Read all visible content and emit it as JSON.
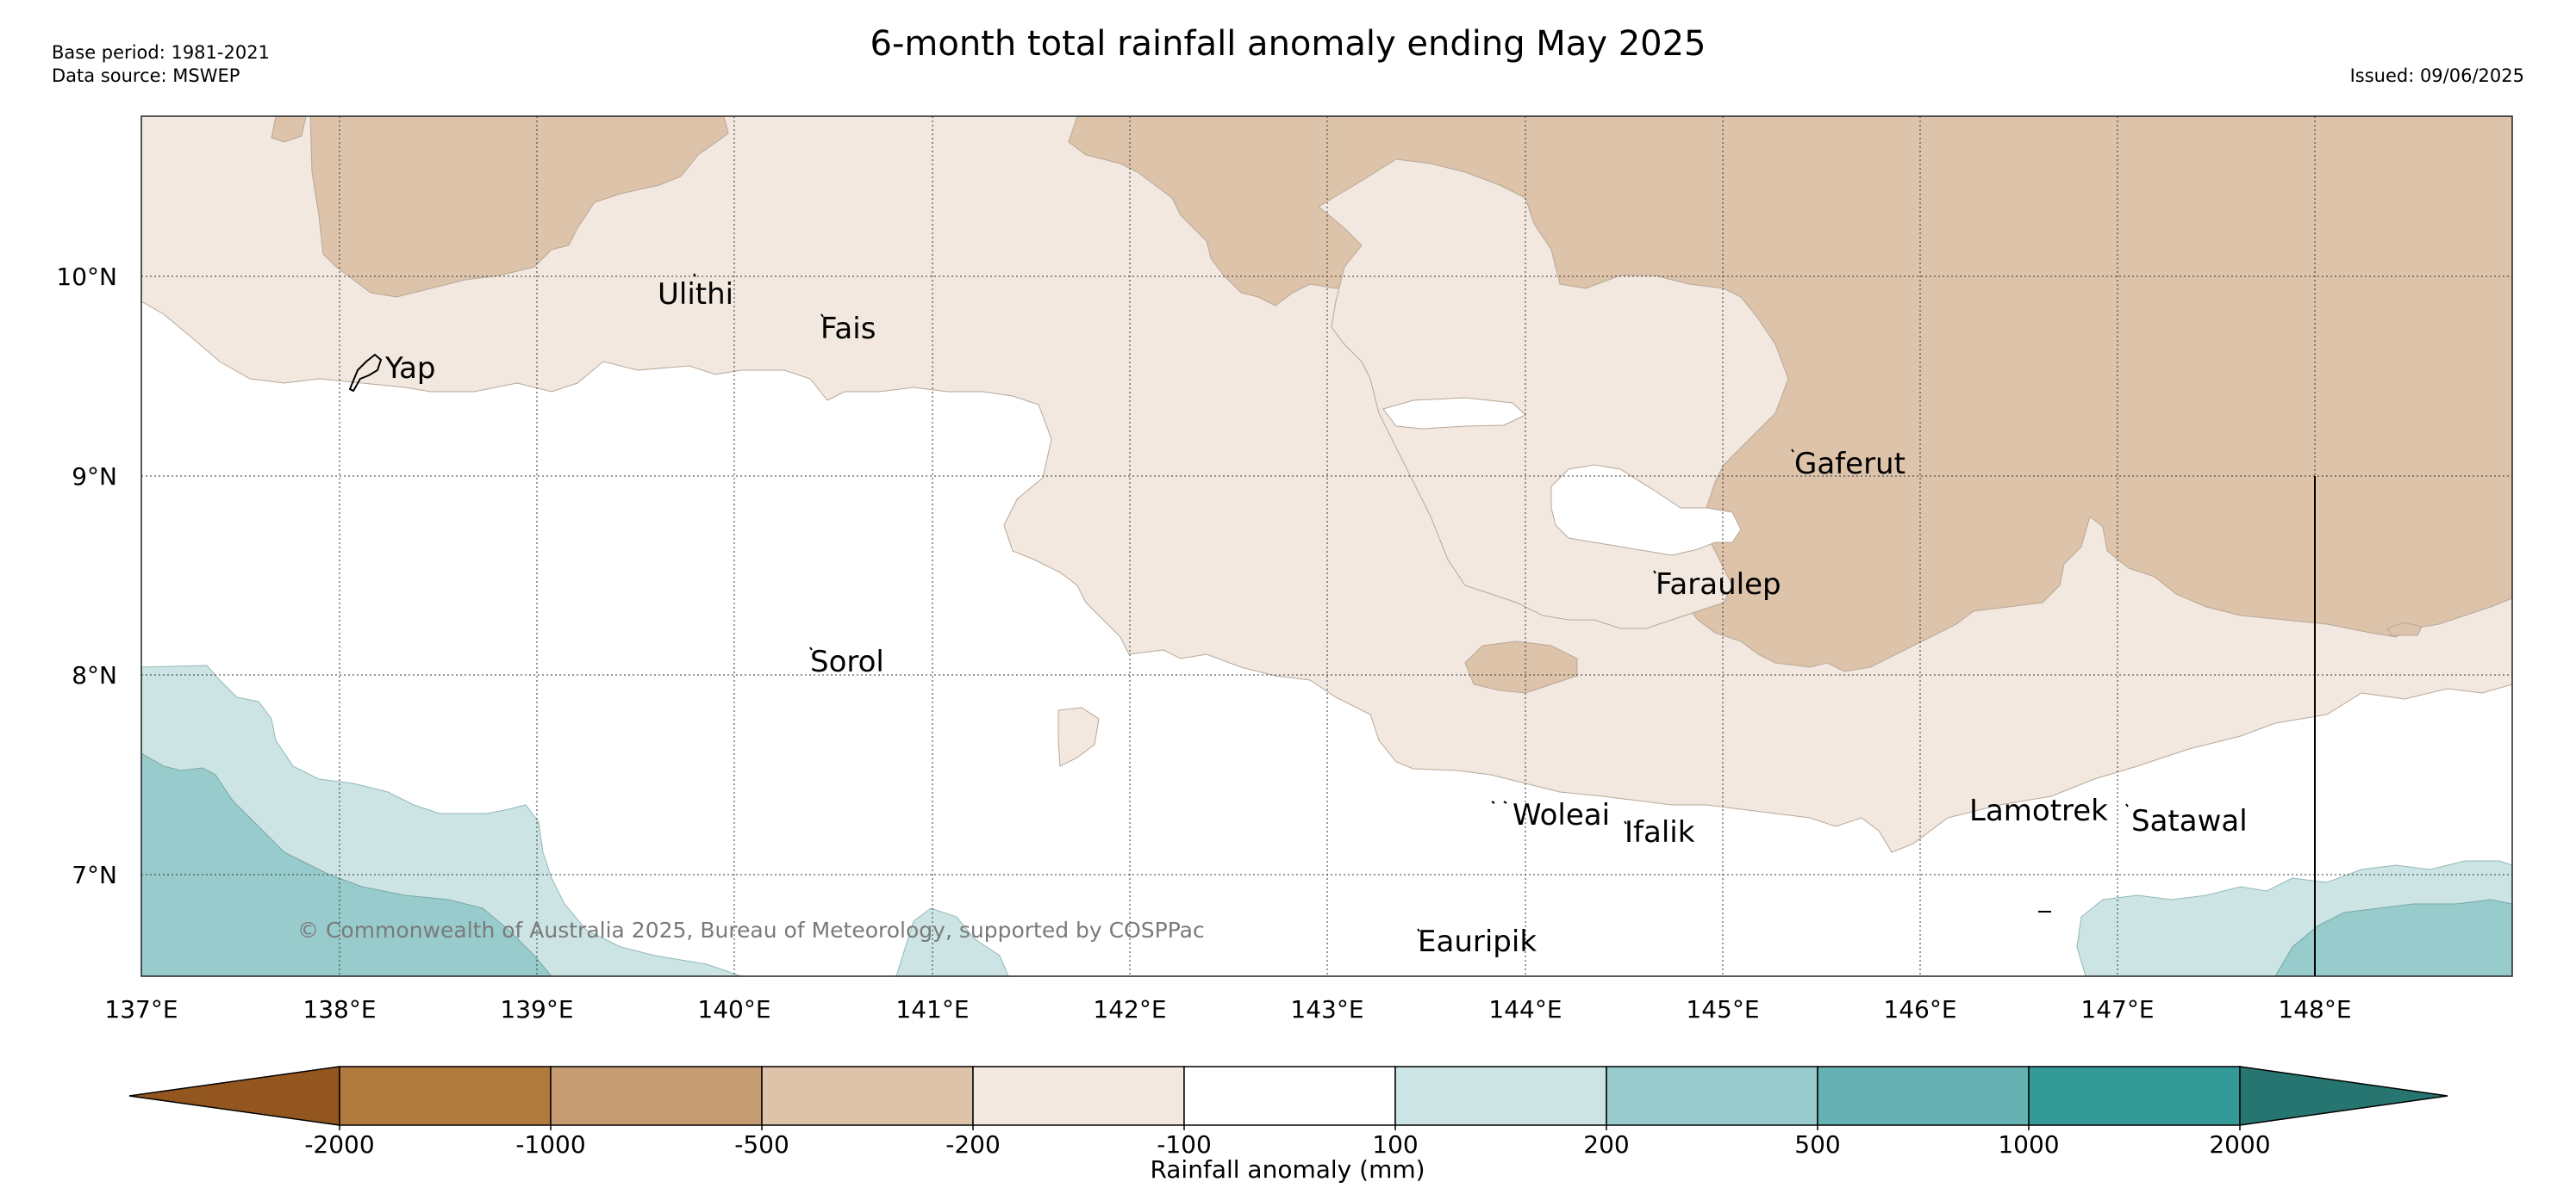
{
  "header": {
    "title": "6-month total rainfall anomaly ending May 2025",
    "base_period": "Base period: 1981-2021",
    "data_source": "Data source: MSWEP",
    "issued": "Issued: 09/06/2025"
  },
  "map": {
    "lon_labels": [
      "137°E",
      "138°E",
      "139°E",
      "140°E",
      "141°E",
      "142°E",
      "143°E",
      "144°E",
      "145°E",
      "146°E",
      "147°E",
      "148°E"
    ],
    "lat_labels": [
      "10°N",
      "9°N",
      "8°N",
      "7°N"
    ],
    "places": [
      {
        "name": "Ulithi"
      },
      {
        "name": "Fais"
      },
      {
        "name": "Yap"
      },
      {
        "name": "Gaferut"
      },
      {
        "name": "Faraulep"
      },
      {
        "name": "Sorol"
      },
      {
        "name": "Woleai"
      },
      {
        "name": "Ifalik"
      },
      {
        "name": "Lamotrek"
      },
      {
        "name": "Satawal"
      },
      {
        "name": "Eauripik"
      }
    ],
    "copyright": "© Commonwealth of Australia 2025, Bureau of Meteorology, supported by COSPPac"
  },
  "legend": {
    "tick_labels": [
      "-2000",
      "-1000",
      "-500",
      "-200",
      "-100",
      "100",
      "200",
      "500",
      "1000",
      "2000"
    ],
    "label": "Rainfall anomaly (mm)",
    "colors": [
      "#93561f",
      "#b07a3e",
      "#c69c72",
      "#dcc3aa",
      "#f2e8df",
      "#ffffff",
      "#cce5e4",
      "#98cbcb",
      "#66b2b2",
      "#339a98",
      "#277570"
    ]
  }
}
